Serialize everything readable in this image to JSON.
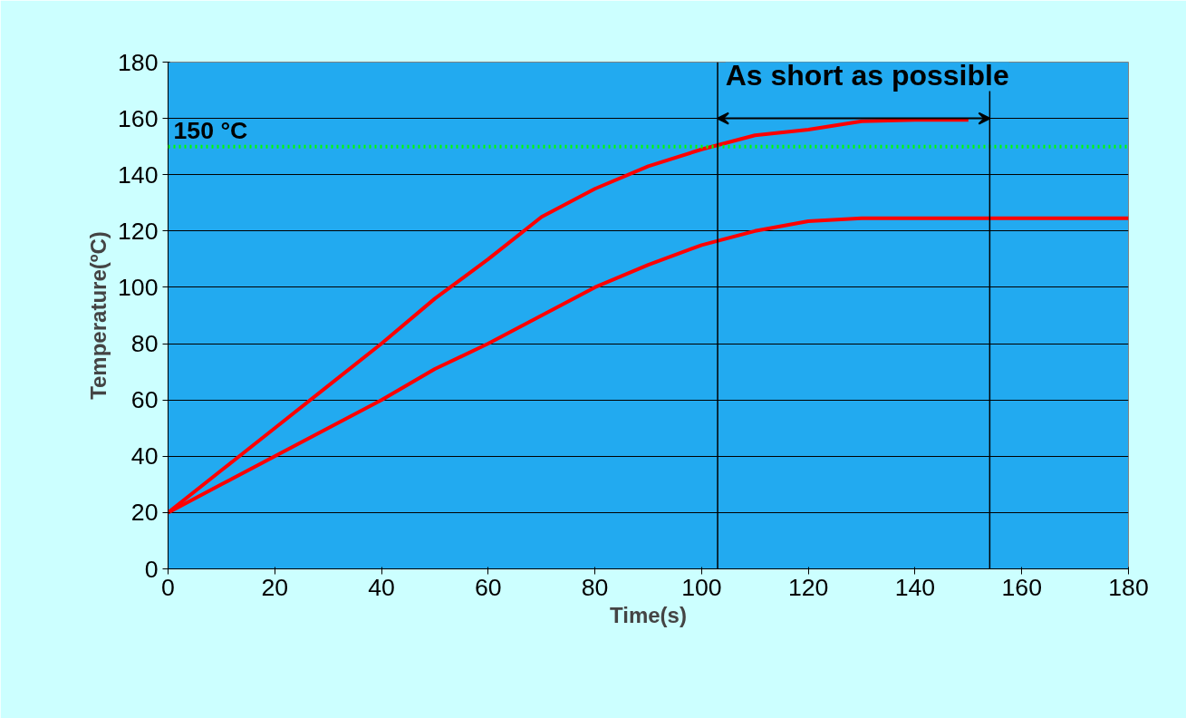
{
  "chart_data": {
    "type": "line",
    "xlabel": "Time(s)",
    "ylabel": "Temperature(ºC)",
    "xlim": [
      0,
      180
    ],
    "xticks": [
      0,
      20,
      40,
      60,
      80,
      100,
      120,
      140,
      160,
      180
    ],
    "ylim": [
      0,
      180
    ],
    "yticks": [
      0,
      20,
      40,
      60,
      80,
      100,
      120,
      140,
      160,
      180
    ],
    "grid": "y",
    "marker": "none",
    "line_style": "solid",
    "series": [
      {
        "color": "#ff0000",
        "x": [
          0,
          10,
          20,
          30,
          40,
          50,
          60,
          70,
          80,
          90,
          100,
          110,
          120,
          130,
          140,
          150
        ],
        "values": [
          20,
          35,
          50,
          65,
          80,
          96,
          110,
          125,
          135,
          143,
          149,
          154,
          156,
          159,
          159.5,
          159.5
        ]
      },
      {
        "color": "#ff0000",
        "x": [
          0,
          10,
          20,
          30,
          40,
          50,
          60,
          70,
          80,
          90,
          100,
          110,
          120,
          130,
          140,
          150,
          160,
          170,
          180
        ],
        "values": [
          20,
          30,
          40,
          50,
          60,
          71,
          80,
          90,
          100,
          108,
          115,
          120,
          123.5,
          124.5,
          124.5,
          124.5,
          124.5,
          124.5,
          124.5
        ]
      }
    ],
    "ref_lines": [
      {
        "axis": "y",
        "value": 150,
        "label": "150 °C",
        "color": "#00ff00",
        "line_style": "dotted"
      },
      {
        "axis": "x",
        "value": 103,
        "color": "#000000",
        "line_style": "solid"
      },
      {
        "axis": "x",
        "value": 154,
        "color": "#000000",
        "line_style": "solid"
      }
    ],
    "annotations": [
      {
        "text": "As short as possible",
        "x": 128.5,
        "y": 160
      }
    ]
  }
}
